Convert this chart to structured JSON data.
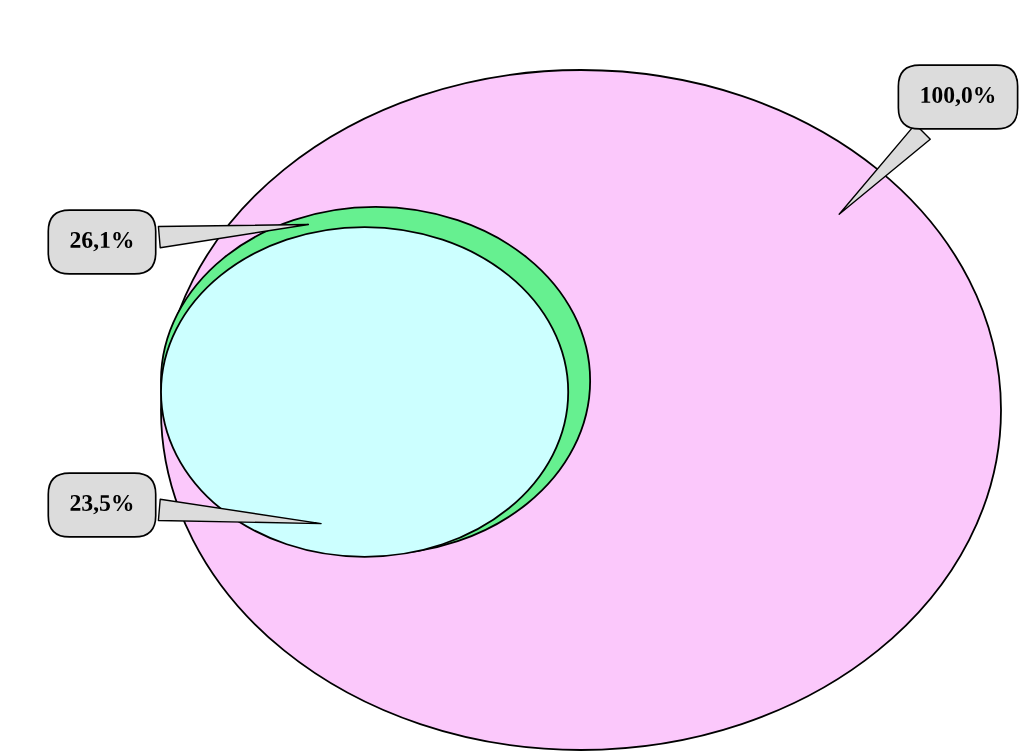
{
  "chart_data": {
    "type": "other",
    "categories": [
      null,
      null,
      null
    ],
    "values": [
      100.0,
      26.1,
      23.5
    ],
    "value_labels": [
      "100,0%",
      "26,1%",
      "23,5%"
    ],
    "colors": [
      "#fbc8fb",
      "#66f090",
      "#ccffff"
    ]
  }
}
